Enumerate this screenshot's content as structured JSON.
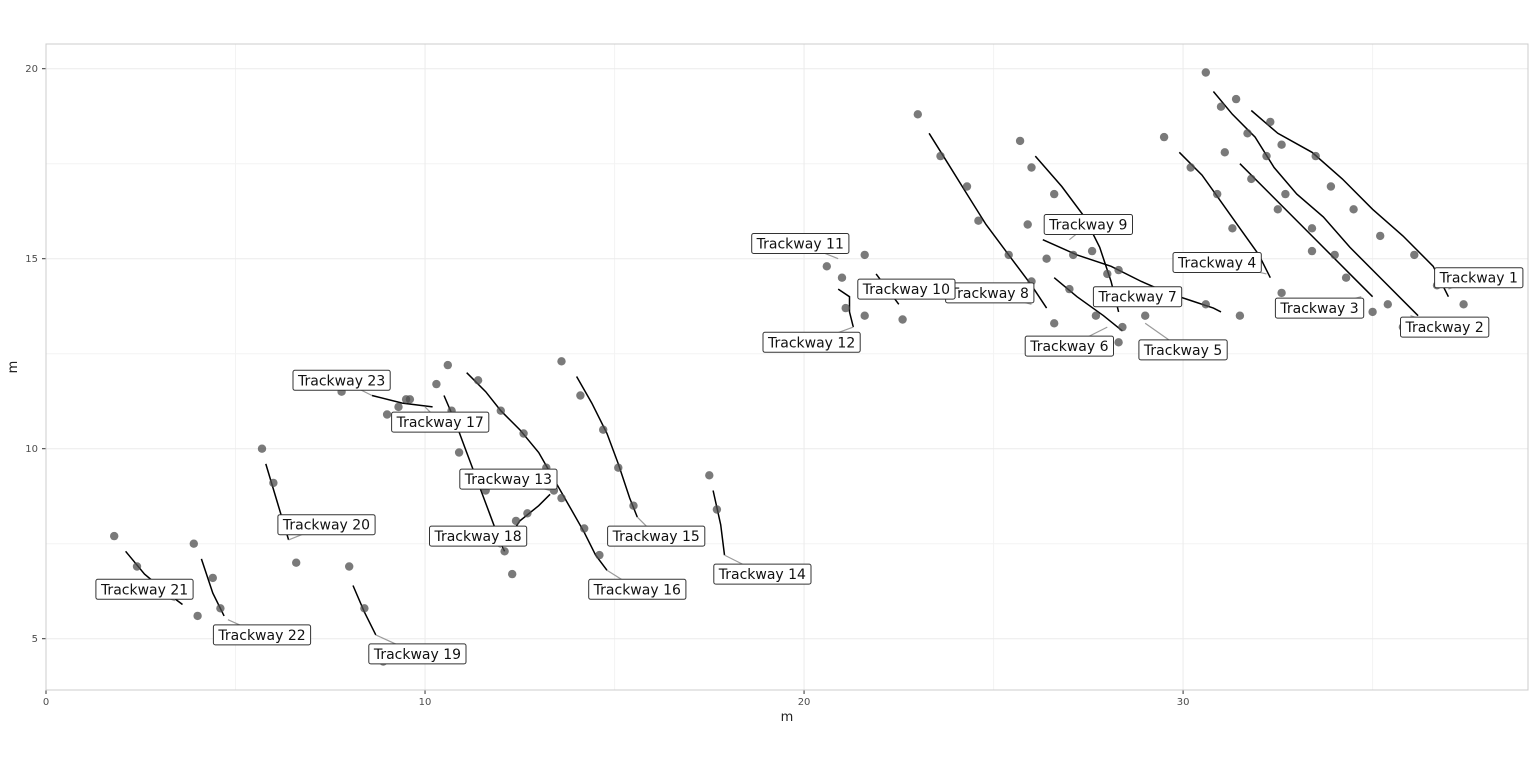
{
  "chart_data": {
    "type": "scatter",
    "title": "",
    "xlabel": "m",
    "ylabel": "m",
    "xlim": [
      0,
      39.1
    ],
    "ylim": [
      3.65,
      20.65
    ],
    "x_ticks": [
      0,
      10,
      20,
      30
    ],
    "y_ticks": [
      5,
      10,
      15,
      20
    ],
    "grid": true,
    "colors": {
      "points": "#4d4d4d",
      "lines": "#000000",
      "grid": "#ebebeb",
      "label_border": "#333333",
      "leader": "#9a9a9a"
    },
    "points": [
      [
        30.6,
        19.9
      ],
      [
        31.0,
        19.0
      ],
      [
        31.4,
        19.2
      ],
      [
        31.7,
        18.3
      ],
      [
        32.3,
        18.6
      ],
      [
        32.6,
        18.0
      ],
      [
        32.2,
        17.7
      ],
      [
        33.5,
        17.7
      ],
      [
        31.1,
        17.8
      ],
      [
        31.8,
        17.1
      ],
      [
        32.7,
        16.7
      ],
      [
        33.9,
        16.9
      ],
      [
        34.5,
        16.3
      ],
      [
        32.5,
        16.3
      ],
      [
        33.4,
        15.8
      ],
      [
        35.2,
        15.6
      ],
      [
        33.4,
        15.2
      ],
      [
        34.0,
        15.1
      ],
      [
        36.1,
        15.1
      ],
      [
        34.3,
        14.5
      ],
      [
        36.7,
        14.3
      ],
      [
        35.0,
        13.6
      ],
      [
        37.4,
        13.8
      ],
      [
        32.6,
        14.1
      ],
      [
        35.4,
        13.8
      ],
      [
        35.8,
        13.2
      ],
      [
        29.5,
        18.2
      ],
      [
        30.2,
        17.4
      ],
      [
        30.9,
        16.7
      ],
      [
        31.3,
        15.8
      ],
      [
        31.6,
        14.9
      ],
      [
        23.0,
        18.8
      ],
      [
        23.6,
        17.7
      ],
      [
        24.3,
        16.9
      ],
      [
        24.6,
        16.0
      ],
      [
        25.4,
        15.1
      ],
      [
        26.0,
        14.4
      ],
      [
        25.7,
        18.1
      ],
      [
        26.0,
        17.4
      ],
      [
        26.6,
        16.7
      ],
      [
        25.9,
        15.9
      ],
      [
        26.4,
        15.0
      ],
      [
        27.1,
        15.1
      ],
      [
        27.6,
        15.2
      ],
      [
        28.0,
        14.6
      ],
      [
        28.3,
        14.7
      ],
      [
        28.4,
        13.2
      ],
      [
        28.3,
        12.8
      ],
      [
        28.1,
        14.0
      ],
      [
        26.6,
        13.3
      ],
      [
        27.0,
        14.2
      ],
      [
        27.7,
        13.5
      ],
      [
        29.0,
        13.5
      ],
      [
        29.5,
        12.7
      ],
      [
        30.6,
        13.8
      ],
      [
        31.5,
        13.5
      ],
      [
        20.6,
        14.8
      ],
      [
        21.0,
        14.5
      ],
      [
        21.1,
        13.7
      ],
      [
        21.6,
        15.1
      ],
      [
        21.6,
        13.5
      ],
      [
        22.6,
        13.4
      ],
      [
        10.6,
        12.2
      ],
      [
        10.3,
        11.7
      ],
      [
        11.4,
        11.8
      ],
      [
        12.0,
        11.0
      ],
      [
        10.7,
        11.0
      ],
      [
        10.9,
        9.9
      ],
      [
        11.6,
        8.9
      ],
      [
        12.1,
        7.3
      ],
      [
        12.3,
        6.7
      ],
      [
        12.4,
        8.1
      ],
      [
        12.7,
        8.3
      ],
      [
        12.6,
        10.4
      ],
      [
        13.2,
        9.5
      ],
      [
        13.4,
        8.9
      ],
      [
        13.6,
        8.7
      ],
      [
        14.2,
        7.9
      ],
      [
        14.6,
        7.2
      ],
      [
        14.9,
        6.4
      ],
      [
        13.6,
        12.3
      ],
      [
        14.1,
        11.4
      ],
      [
        14.7,
        10.5
      ],
      [
        15.1,
        9.5
      ],
      [
        15.5,
        8.5
      ],
      [
        17.5,
        9.3
      ],
      [
        17.7,
        8.4
      ],
      [
        7.8,
        11.5
      ],
      [
        9.0,
        10.9
      ],
      [
        9.6,
        11.3
      ],
      [
        9.5,
        11.3
      ],
      [
        9.3,
        11.1
      ],
      [
        1.8,
        7.7
      ],
      [
        2.4,
        6.9
      ],
      [
        5.7,
        10.0
      ],
      [
        6.0,
        9.1
      ],
      [
        6.6,
        7.0
      ],
      [
        3.9,
        7.5
      ],
      [
        4.4,
        6.6
      ],
      [
        4.0,
        5.6
      ],
      [
        4.6,
        5.8
      ],
      [
        8.0,
        6.9
      ],
      [
        8.4,
        5.8
      ],
      [
        8.9,
        4.4
      ]
    ],
    "series": [
      {
        "name": "Trackway 1",
        "x": [
          31.8,
          32.5,
          33.4,
          34.2,
          35.0,
          35.8,
          36.6,
          37.0
        ],
        "y": [
          18.9,
          18.3,
          17.8,
          17.1,
          16.3,
          15.6,
          14.8,
          14.0
        ]
      },
      {
        "name": "Trackway 2",
        "x": [
          30.8,
          31.3,
          31.9,
          32.4,
          33.0,
          33.7,
          34.4,
          35.3,
          36.2
        ],
        "y": [
          19.4,
          18.8,
          18.2,
          17.4,
          16.7,
          16.1,
          15.3,
          14.4,
          13.5
        ]
      },
      {
        "name": "Trackway 3",
        "x": [
          31.5,
          32.3,
          33.1,
          33.9,
          34.5,
          35.0
        ],
        "y": [
          17.5,
          16.7,
          15.9,
          15.1,
          14.5,
          14.0
        ]
      },
      {
        "name": "Trackway 4",
        "x": [
          29.9,
          30.5,
          31.0,
          31.5,
          32.0,
          32.3
        ],
        "y": [
          17.8,
          17.2,
          16.5,
          15.8,
          15.1,
          14.5
        ]
      },
      {
        "name": "Trackway 5",
        "x": [
          26.1,
          26.8,
          27.4,
          27.8,
          28.1,
          28.3
        ],
        "y": [
          17.7,
          16.9,
          16.1,
          15.3,
          14.4,
          13.6
        ]
      },
      {
        "name": "Trackway 6",
        "x": [
          26.6,
          27.2,
          27.9,
          28.4
        ],
        "y": [
          14.5,
          14.0,
          13.5,
          13.1
        ]
      },
      {
        "name": "Trackway 7",
        "x": [
          26.3,
          27.2,
          28.1,
          28.9,
          29.6,
          30.2,
          30.8,
          31.0
        ],
        "y": [
          15.5,
          15.1,
          14.8,
          14.4,
          14.1,
          13.9,
          13.7,
          13.6
        ]
      },
      {
        "name": "Trackway 8",
        "x": [
          23.3,
          23.8,
          24.3,
          24.8,
          25.4,
          26.0,
          26.4
        ],
        "y": [
          18.3,
          17.5,
          16.7,
          15.9,
          15.1,
          14.3,
          13.7
        ]
      },
      {
        "name": "Trackway 10",
        "x": [
          21.9,
          22.2,
          22.5
        ],
        "y": [
          14.6,
          14.2,
          13.8
        ]
      },
      {
        "name": "Trackway 12",
        "x": [
          20.9,
          21.2,
          21.2,
          21.3
        ],
        "y": [
          14.2,
          14.0,
          13.6,
          13.2
        ]
      },
      {
        "name": "Trackway 13",
        "x": [
          11.1,
          11.6,
          12.0,
          12.5,
          13.0,
          13.4,
          13.8,
          14.2,
          14.5,
          14.8
        ],
        "y": [
          12.0,
          11.5,
          11.0,
          10.5,
          9.9,
          9.2,
          8.5,
          7.8,
          7.2,
          6.8
        ]
      },
      {
        "name": "Trackway 14",
        "x": [
          17.6,
          17.8,
          17.9
        ],
        "y": [
          8.9,
          8.0,
          7.2
        ]
      },
      {
        "name": "Trackway 15",
        "x": [
          14.0,
          14.4,
          14.8,
          15.1,
          15.4,
          15.6
        ],
        "y": [
          11.9,
          11.2,
          10.4,
          9.6,
          8.7,
          8.2
        ]
      },
      {
        "name": "Trackway 17",
        "x": [
          10.5,
          10.8,
          11.1,
          11.4,
          11.7,
          12.0,
          12.1
        ],
        "y": [
          11.4,
          10.7,
          9.9,
          9.1,
          8.3,
          7.5,
          7.3
        ]
      },
      {
        "name": "Trackway 18",
        "x": [
          12.1,
          12.5,
          13.0,
          13.3
        ],
        "y": [
          7.5,
          8.1,
          8.5,
          8.8
        ]
      },
      {
        "name": "Trackway 19",
        "x": [
          8.1,
          8.4,
          8.7
        ],
        "y": [
          6.4,
          5.7,
          5.1
        ]
      },
      {
        "name": "Trackway 20",
        "x": [
          5.8,
          6.1,
          6.4
        ],
        "y": [
          9.6,
          8.6,
          7.6
        ]
      },
      {
        "name": "Trackway 21",
        "x": [
          2.1,
          2.6,
          3.2,
          3.6
        ],
        "y": [
          7.3,
          6.7,
          6.2,
          5.9
        ]
      },
      {
        "name": "Trackway 22",
        "x": [
          4.1,
          4.4,
          4.7
        ],
        "y": [
          7.1,
          6.2,
          5.6
        ]
      },
      {
        "name": "Trackway 23",
        "x": [
          8.6,
          9.4,
          10.2
        ],
        "y": [
          11.4,
          11.2,
          11.1
        ]
      }
    ],
    "labels": [
      {
        "text": "Trackway 1",
        "x": 37.8,
        "y": 14.5,
        "to_x": 37.0,
        "to_y": 14.2
      },
      {
        "text": "Trackway 2",
        "x": 36.9,
        "y": 13.2,
        "to_x": 36.0,
        "to_y": 13.5
      },
      {
        "text": "Trackway 3",
        "x": 33.6,
        "y": 13.7,
        "to_x": 34.7,
        "to_y": 14.0
      },
      {
        "text": "Trackway 4",
        "x": 30.9,
        "y": 14.9,
        "to_x": 32.2,
        "to_y": 14.6
      },
      {
        "text": "Trackway 5",
        "x": 30.0,
        "y": 12.6,
        "to_x": 29.0,
        "to_y": 13.3
      },
      {
        "text": "Trackway 6",
        "x": 27.0,
        "y": 12.7,
        "to_x": 28.0,
        "to_y": 13.2
      },
      {
        "text": "Trackway 7",
        "x": 28.8,
        "y": 14.0,
        "to_x": 28.5,
        "to_y": 14.2
      },
      {
        "text": "Trackway 8",
        "x": 24.9,
        "y": 14.1,
        "to_x": 26.0,
        "to_y": 13.8
      },
      {
        "text": "Trackway 9",
        "x": 27.5,
        "y": 15.9,
        "to_x": 27.0,
        "to_y": 15.5
      },
      {
        "text": "Trackway 10",
        "x": 22.7,
        "y": 14.2,
        "to_x": 22.4,
        "to_y": 14.0
      },
      {
        "text": "Trackway 11",
        "x": 19.9,
        "y": 15.4,
        "to_x": 20.9,
        "to_y": 15.0
      },
      {
        "text": "Trackway 12",
        "x": 20.2,
        "y": 12.8,
        "to_x": 21.3,
        "to_y": 13.2
      },
      {
        "text": "Trackway 13",
        "x": 12.2,
        "y": 9.2,
        "to_x": 13.3,
        "to_y": 8.9
      },
      {
        "text": "Trackway 14",
        "x": 18.9,
        "y": 6.7,
        "to_x": 17.9,
        "to_y": 7.2
      },
      {
        "text": "Trackway 15",
        "x": 16.1,
        "y": 7.7,
        "to_x": 15.6,
        "to_y": 8.2
      },
      {
        "text": "Trackway 16",
        "x": 15.6,
        "y": 6.3,
        "to_x": 14.8,
        "to_y": 6.8
      },
      {
        "text": "Trackway 17",
        "x": 10.4,
        "y": 10.7,
        "to_x": 10.0,
        "to_y": 11.1
      },
      {
        "text": "Trackway 18",
        "x": 11.4,
        "y": 7.7,
        "to_x": 12.0,
        "to_y": 7.4
      },
      {
        "text": "Trackway 19",
        "x": 9.8,
        "y": 4.6,
        "to_x": 8.7,
        "to_y": 5.1
      },
      {
        "text": "Trackway 20",
        "x": 7.4,
        "y": 8.0,
        "to_x": 6.4,
        "to_y": 7.6
      },
      {
        "text": "Trackway 21",
        "x": 2.6,
        "y": 6.3,
        "to_x": 3.4,
        "to_y": 6.0
      },
      {
        "text": "Trackway 22",
        "x": 5.7,
        "y": 5.1,
        "to_x": 4.8,
        "to_y": 5.5
      },
      {
        "text": "Trackway 23",
        "x": 7.8,
        "y": 11.8,
        "to_x": 8.6,
        "to_y": 11.4
      }
    ]
  }
}
